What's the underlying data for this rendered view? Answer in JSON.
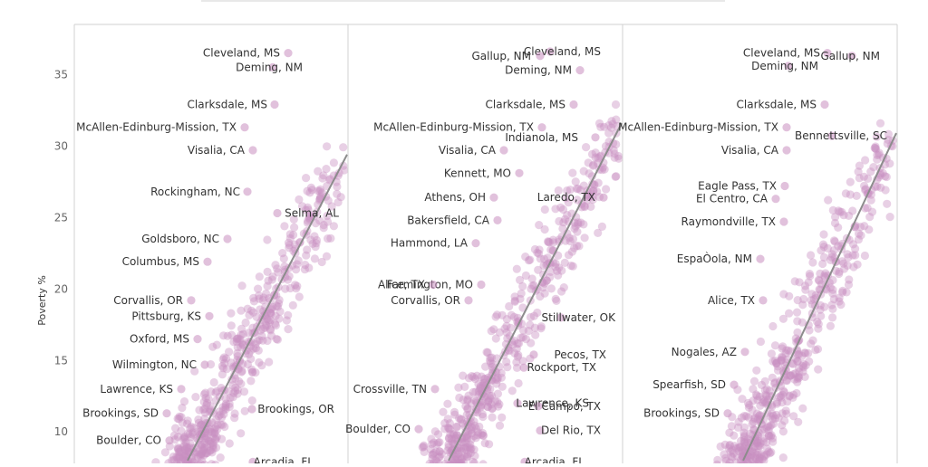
{
  "chart_data": {
    "type": "scatter",
    "ylabel": "Poverty %",
    "ylim": [
      7.8,
      38.5
    ],
    "yticks": [
      "35",
      "30",
      "25",
      "20",
      "15",
      "10"
    ],
    "grid": false,
    "colors": {
      "points": "#c98ec0",
      "trend": "#8c8c8c",
      "axis": "#d0d0d0",
      "tick_text": "#666666",
      "label_text": "#333333"
    },
    "panels": [
      {
        "labeled_points": [
          {
            "label": "Cleveland, MS",
            "y": 36.5
          },
          {
            "label": "Deming, NM",
            "y": 35.5
          },
          {
            "label": "Clarksdale, MS",
            "y": 32.9
          },
          {
            "label": "McAllen-Edinburg-Mission, TX",
            "y": 31.3
          },
          {
            "label": "Visalia, CA",
            "y": 29.7
          },
          {
            "label": "Rockingham, NC",
            "y": 26.8
          },
          {
            "label": "Selma, AL",
            "y": 25.3
          },
          {
            "label": "Goldsboro, NC",
            "y": 23.5
          },
          {
            "label": "Columbus, MS",
            "y": 21.9
          },
          {
            "label": "Corvallis, OR",
            "y": 19.2
          },
          {
            "label": "Pittsburg, KS",
            "y": 18.1
          },
          {
            "label": "Oxford, MS",
            "y": 16.5
          },
          {
            "label": "Wilmington, NC",
            "y": 14.7
          },
          {
            "label": "Lawrence, KS",
            "y": 13.0
          },
          {
            "label": "Brookings, SD",
            "y": 11.3
          },
          {
            "label": "Brookings, OR",
            "y": 11.6
          },
          {
            "label": "Boulder, CO",
            "y": 9.4
          },
          {
            "label": "Arcadia, FL",
            "y": 7.9
          }
        ]
      },
      {
        "labeled_points": [
          {
            "label": "Cleveland, MS",
            "y": 36.6
          },
          {
            "label": "Gallup, NM",
            "y": 36.3
          },
          {
            "label": "Deming, NM",
            "y": 35.3
          },
          {
            "label": "Clarksdale, MS",
            "y": 32.9
          },
          {
            "label": "McAllen-Edinburg-Mission, TX",
            "y": 31.3
          },
          {
            "label": "Indianola, MS",
            "y": 30.6
          },
          {
            "label": "Visalia, CA",
            "y": 29.7
          },
          {
            "label": "Kennett, MO",
            "y": 28.1
          },
          {
            "label": "Athens, OH",
            "y": 26.4
          },
          {
            "label": "Laredo, TX",
            "y": 26.4
          },
          {
            "label": "Bakersfield, CA",
            "y": 24.8
          },
          {
            "label": "Hammond, LA",
            "y": 23.2
          },
          {
            "label": "Farmington, MO",
            "y": 20.3
          },
          {
            "label": "Alice, TX",
            "y": 20.3
          },
          {
            "label": "Corvallis, OR",
            "y": 19.2
          },
          {
            "label": "Stillwater, OK",
            "y": 18.0
          },
          {
            "label": "Pecos, TX",
            "y": 15.4
          },
          {
            "label": "Rockport, TX",
            "y": 14.5
          },
          {
            "label": "Crossville, TN",
            "y": 13.0
          },
          {
            "label": "Lawrence, KS",
            "y": 12.0
          },
          {
            "label": "El Campo, TX",
            "y": 11.8
          },
          {
            "label": "Boulder, CO",
            "y": 10.2
          },
          {
            "label": "Del Rio, TX",
            "y": 10.1
          },
          {
            "label": "Arcadia, FL",
            "y": 7.9
          }
        ]
      },
      {
        "labeled_points": [
          {
            "label": "Cleveland, MS",
            "y": 36.5
          },
          {
            "label": "Gallup, NM",
            "y": 36.3
          },
          {
            "label": "Deming, NM",
            "y": 35.6
          },
          {
            "label": "Clarksdale, MS",
            "y": 32.9
          },
          {
            "label": "McAllen-Edinburg-Mission, TX",
            "y": 31.3
          },
          {
            "label": "Bennettsville, SC",
            "y": 30.7
          },
          {
            "label": "Visalia, CA",
            "y": 29.7
          },
          {
            "label": "Eagle Pass, TX",
            "y": 27.2
          },
          {
            "label": "El Centro, CA",
            "y": 26.3
          },
          {
            "label": "Raymondville, TX",
            "y": 24.7
          },
          {
            "label": "EspaÒola, NM",
            "y": 22.1
          },
          {
            "label": "Alice, TX",
            "y": 19.2
          },
          {
            "label": "Nogales, AZ",
            "y": 15.6
          },
          {
            "label": "Spearfish, SD",
            "y": 13.3
          },
          {
            "label": "Brookings, SD",
            "y": 11.3
          }
        ]
      }
    ]
  }
}
